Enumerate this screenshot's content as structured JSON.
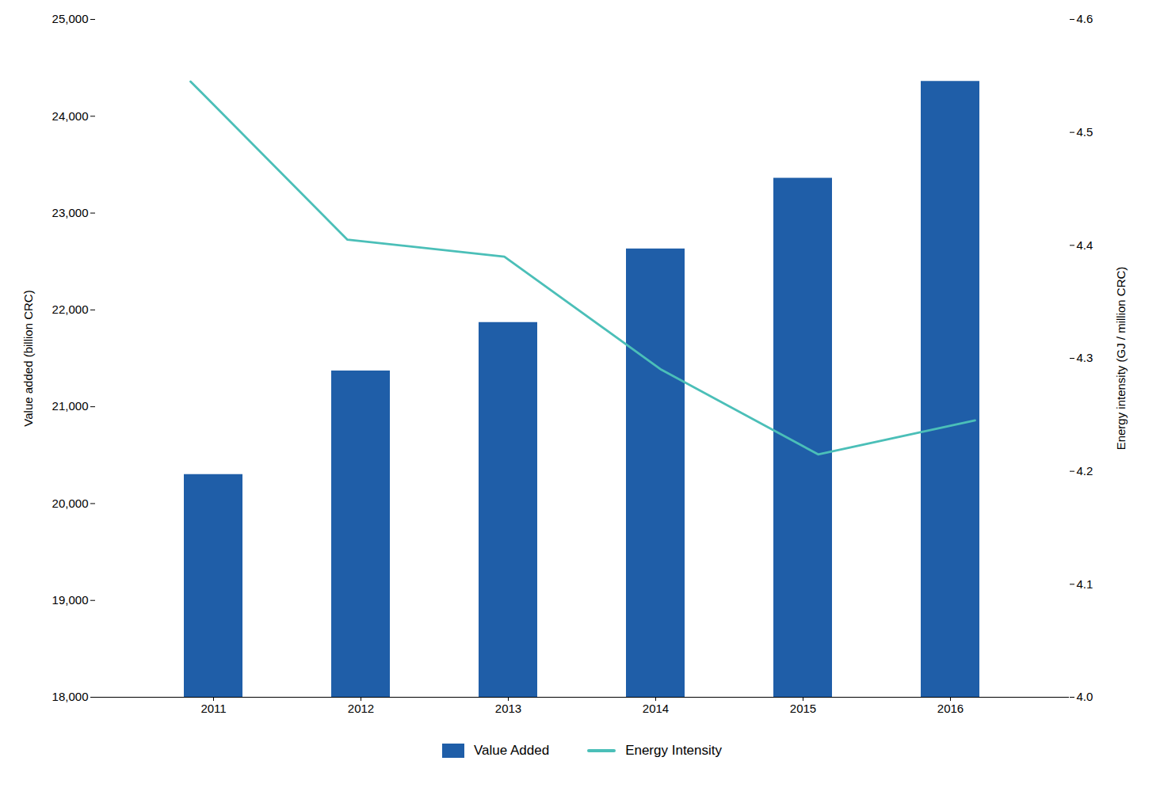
{
  "chart_data": {
    "type": "bar",
    "categories": [
      "2011",
      "2012",
      "2013",
      "2014",
      "2015",
      "2016"
    ],
    "series": [
      {
        "name": "Value Added",
        "type": "bar",
        "color": "#1f5ea8",
        "values": [
          20300,
          21370,
          21870,
          22630,
          23360,
          24360
        ]
      },
      {
        "name": "Energy Intensity",
        "type": "line",
        "color": "#4bbfb8",
        "axis": "y2",
        "values": [
          4.545,
          4.405,
          4.39,
          4.29,
          4.215,
          4.245
        ]
      }
    ],
    "ylabel": "Value added (billion CRC)",
    "y2label": "Energy intensity (GJ / million CRC)",
    "ylim": [
      18000,
      25000
    ],
    "yticks": [
      {
        "value": 18000,
        "label": "18,000"
      },
      {
        "value": 19000,
        "label": "19,000"
      },
      {
        "value": 20000,
        "label": "20,000"
      },
      {
        "value": 21000,
        "label": "21,000"
      },
      {
        "value": 22000,
        "label": "22,000"
      },
      {
        "value": 23000,
        "label": "23,000"
      },
      {
        "value": 24000,
        "label": "24,000"
      },
      {
        "value": 25000,
        "label": "25,000"
      }
    ],
    "y2lim": [
      4.0,
      4.6
    ],
    "y2ticks": [
      {
        "value": 4.0,
        "label": "4.0"
      },
      4.1,
      4.2,
      4.3,
      4.4,
      4.5,
      4.6
    ],
    "grid": false,
    "legend": "bottom"
  }
}
